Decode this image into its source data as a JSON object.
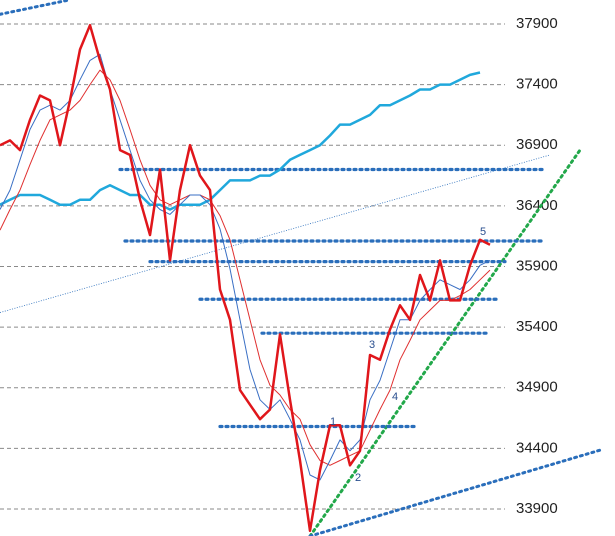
{
  "chart_data": {
    "type": "line",
    "xlim": [
      0,
      61.5
    ],
    "ylim": [
      33677,
      38098
    ],
    "yticks": [
      37900,
      37400,
      36900,
      36400,
      35900,
      35400,
      34900,
      34400,
      33900
    ],
    "grid": true,
    "series": [
      {
        "color": "#20a8dc",
        "values": [
          36410,
          36450,
          36490,
          36490,
          36490,
          36450,
          36410,
          36410,
          36450,
          36450,
          36530,
          36570,
          36530,
          36490,
          36490,
          36410,
          36410,
          36370,
          36410,
          36410,
          36410,
          36450,
          36530,
          36610,
          36610,
          36610,
          36650,
          36650,
          36700,
          36780,
          36820,
          36860,
          36900,
          36980,
          37070,
          37070,
          37110,
          37150,
          37230,
          37230,
          37270,
          37310,
          37360,
          37360,
          37400,
          37400,
          37440,
          37480,
          37500,
          null
        ]
      },
      {
        "color": "#e03030",
        "values": [
          36200,
          36370,
          36530,
          36740,
          36940,
          37110,
          37150,
          37190,
          37270,
          37400,
          37520,
          37440,
          37270,
          37030,
          36780,
          36570,
          36450,
          36410,
          36450,
          36490,
          36490,
          36450,
          36320,
          36120,
          35790,
          35460,
          35130,
          34920,
          34840,
          34720,
          34640,
          34430,
          34300,
          34260,
          34300,
          34340,
          34380,
          34550,
          34720,
          34880,
          35130,
          35290,
          35460,
          35540,
          35620,
          35620,
          35660,
          35710,
          35790,
          35870
        ]
      },
      {
        "color": "#3a6fc4",
        "values": [
          36370,
          36530,
          36780,
          37030,
          37190,
          37230,
          37190,
          37270,
          37440,
          37600,
          37650,
          37360,
          37110,
          36860,
          36610,
          36450,
          36370,
          36330,
          36410,
          36490,
          36490,
          36410,
          36210,
          35880,
          35460,
          35050,
          34800,
          34720,
          34800,
          34640,
          34470,
          34180,
          34140,
          34300,
          34470,
          34380,
          34470,
          34800,
          34960,
          35210,
          35460,
          35460,
          35620,
          35710,
          35790,
          35750,
          35710,
          35790,
          35910,
          35950
        ]
      },
      {
        "color": "#e0161b",
        "values": [
          36900,
          36940,
          36860,
          37110,
          37310,
          37270,
          36900,
          37270,
          37690,
          37890,
          37600,
          37360,
          36860,
          36820,
          36450,
          36160,
          36700,
          35950,
          36530,
          36900,
          36650,
          36530,
          35710,
          35460,
          34880,
          34760,
          34640,
          34720,
          35340,
          34800,
          34300,
          33720,
          34220,
          34590,
          34590,
          34260,
          34380,
          35170,
          35130,
          35380,
          35580,
          35460,
          35830,
          35620,
          35950,
          35620,
          35620,
          35910,
          36120,
          36080
        ]
      }
    ],
    "support_lines": {
      "color": "#2a6ebb",
      "lines": [
        {
          "value": 36700,
          "start": 12,
          "end": 54.5
        },
        {
          "value": 36110,
          "start": 12.5,
          "end": 54.5
        },
        {
          "value": 35940,
          "start": 15,
          "end": 50.5
        },
        {
          "value": 35630,
          "start": 20,
          "end": 50
        },
        {
          "value": 35350,
          "start": 26.2,
          "end": 49
        },
        {
          "value": 34580,
          "start": 22,
          "end": 41.5
        }
      ]
    },
    "trend_lines": [
      {
        "color": "#2a6ebb",
        "x": [
          0,
          7
        ],
        "y": [
          37980,
          38100
        ]
      },
      {
        "color": "#2a6ebb",
        "x": [
          0,
          55
        ],
        "y": [
          35520,
          36820
        ]
      },
      {
        "color": "#22a84a",
        "x": [
          31,
          58
        ],
        "y": [
          33676,
          36860
        ]
      },
      {
        "color": "#2a6ebb",
        "x": [
          31,
          60
        ],
        "y": [
          33676,
          34385
        ]
      }
    ],
    "annotations": [
      "1",
      "2",
      "3",
      "4",
      "5"
    ]
  }
}
